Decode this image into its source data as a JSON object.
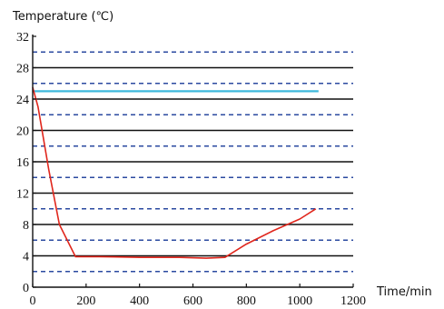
{
  "chart_data": {
    "type": "line",
    "ylabel": "Temperature (℃)",
    "xlabel": "Time/min",
    "xlim": [
      0,
      1200
    ],
    "ylim": [
      0,
      32
    ],
    "xticks": [
      0,
      200,
      400,
      600,
      800,
      1000,
      1200
    ],
    "yticks": [
      0,
      4,
      8,
      12,
      16,
      20,
      24,
      28,
      32
    ],
    "major_grid_y": [
      4,
      8,
      12,
      16,
      20,
      24,
      28
    ],
    "minor_grid_y": [
      2,
      6,
      10,
      14,
      18,
      22,
      26,
      30
    ],
    "series": [
      {
        "color": "#3fb8dc",
        "x": [
          0,
          1070
        ],
        "y": [
          25,
          25
        ]
      },
      {
        "color": "#e0261c",
        "x": [
          0,
          20,
          60,
          100,
          160,
          250,
          400,
          550,
          650,
          720,
          800,
          900,
          1000,
          1060
        ],
        "y": [
          25.5,
          23,
          15,
          8,
          3.9,
          3.9,
          3.8,
          3.8,
          3.7,
          3.8,
          5.5,
          7.2,
          8.7,
          10
        ]
      }
    ]
  }
}
